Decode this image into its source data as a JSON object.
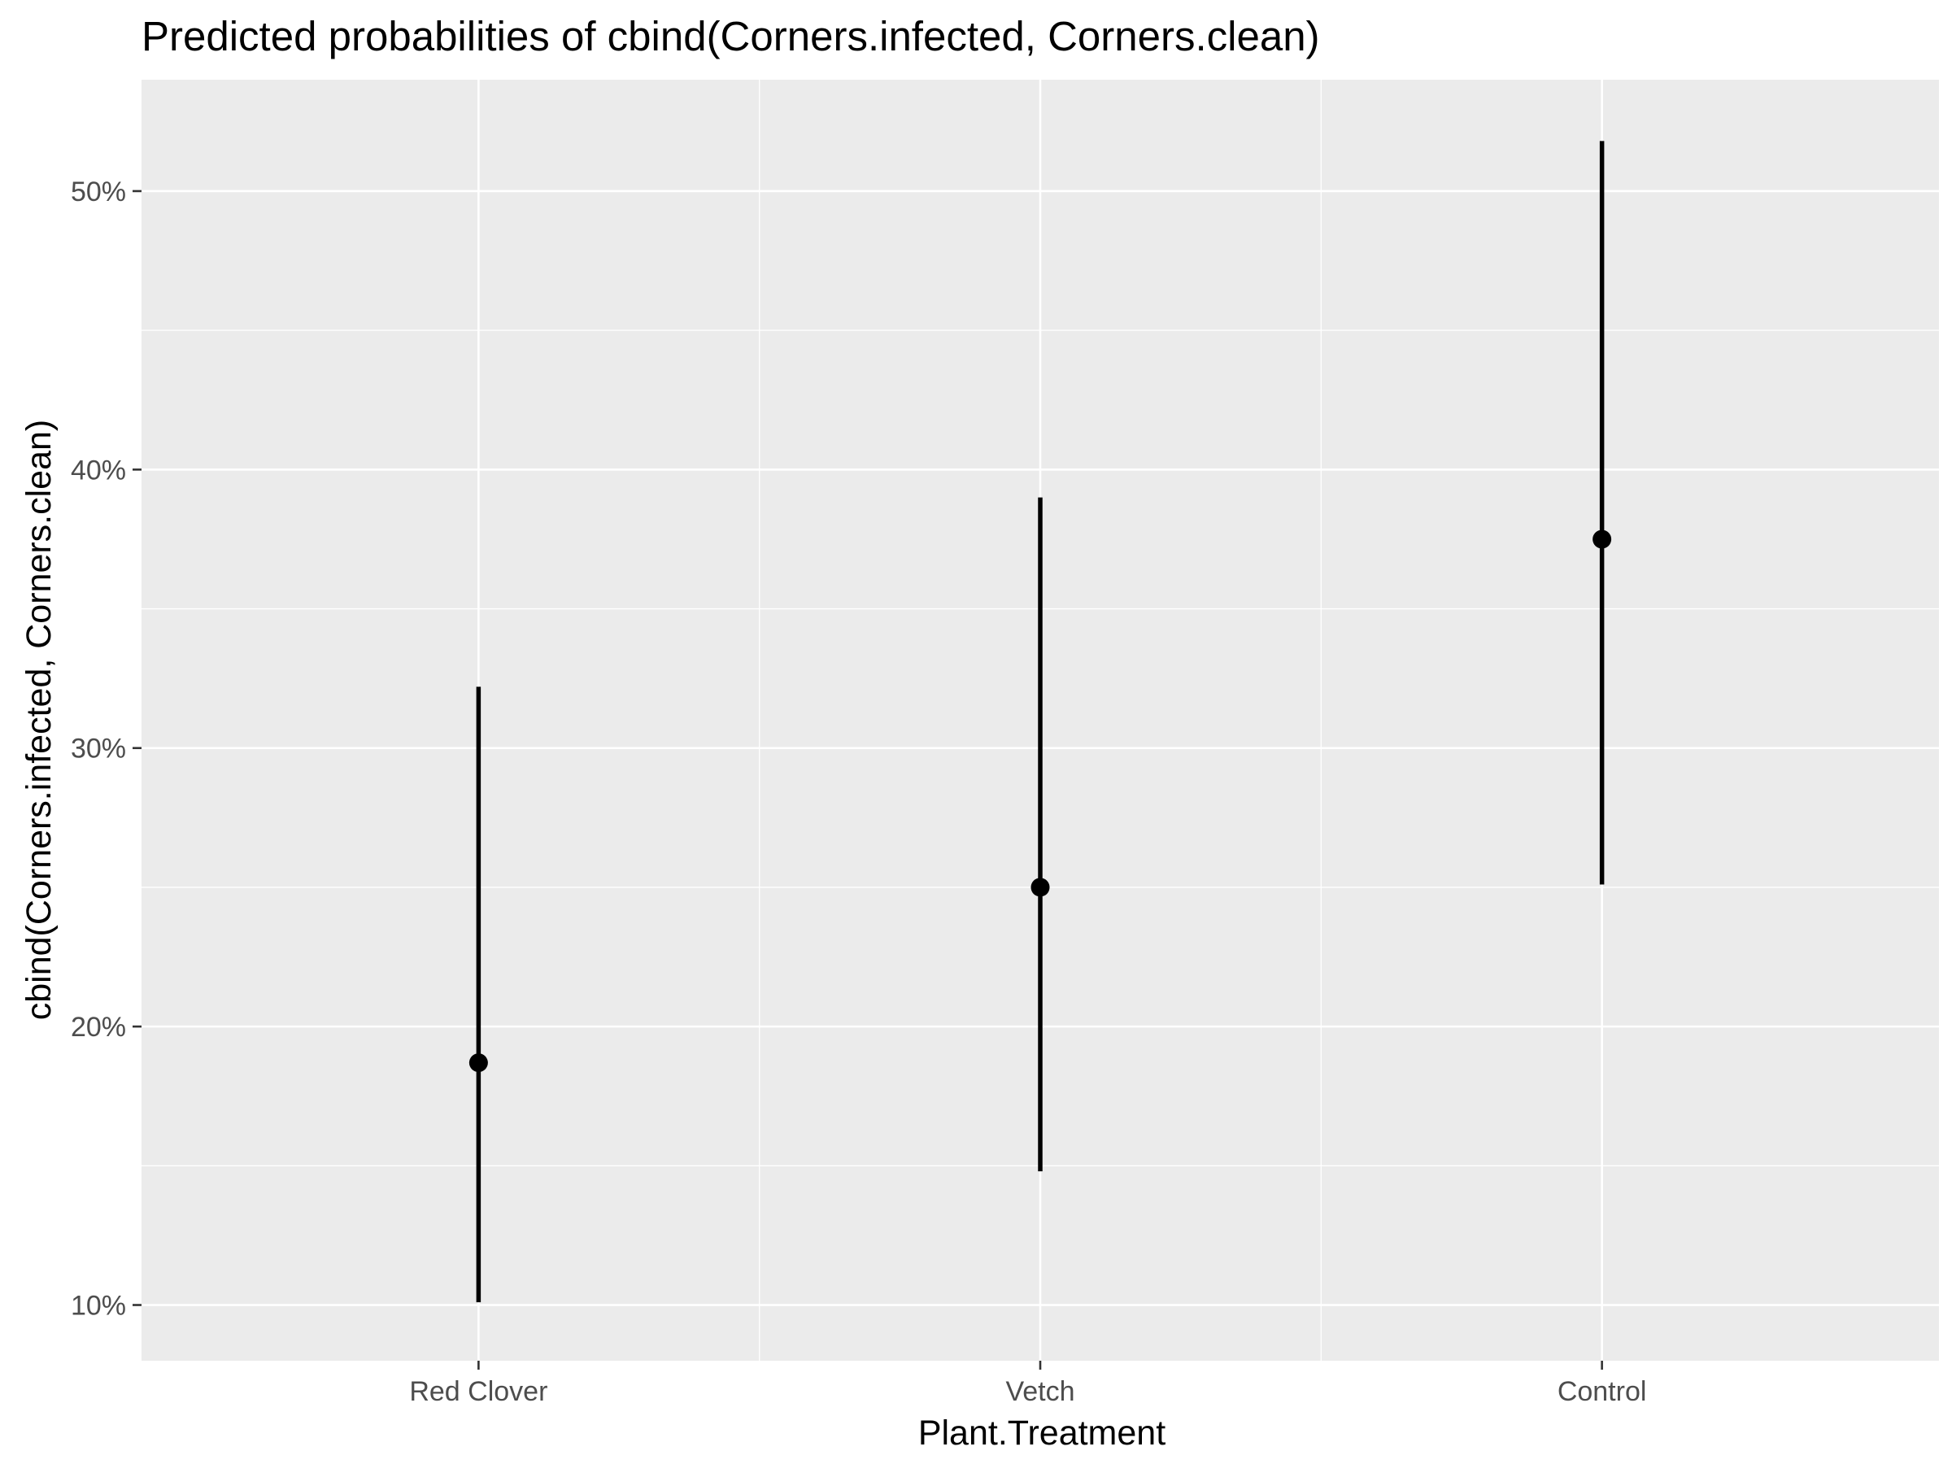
{
  "chart_data": {
    "type": "scatter",
    "title": "Predicted probabilities of cbind(Corners.infected, Corners.clean)",
    "xlabel": "Plant.Treatment",
    "ylabel": "cbind(Corners.infected, Corners.clean)",
    "categories": [
      "Red Clover",
      "Vetch",
      "Control"
    ],
    "series": [
      {
        "values": [
          18.7,
          25.0,
          37.5
        ],
        "lower": [
          10.1,
          14.8,
          25.1
        ],
        "upper": [
          32.2,
          39.0,
          51.8
        ]
      }
    ],
    "y_ticks": [
      10,
      20,
      30,
      40,
      50
    ],
    "y_tick_labels": [
      "10%",
      "20%",
      "30%",
      "40%",
      "50%"
    ],
    "ylim": [
      8,
      54
    ],
    "grid": true,
    "legend": "none",
    "colors": {
      "panel_background": "#ebebeb",
      "grid_line": "#ffffff",
      "marker": "#000000",
      "tick_label": "#4d4d4d",
      "tick_mark": "#333333"
    }
  }
}
